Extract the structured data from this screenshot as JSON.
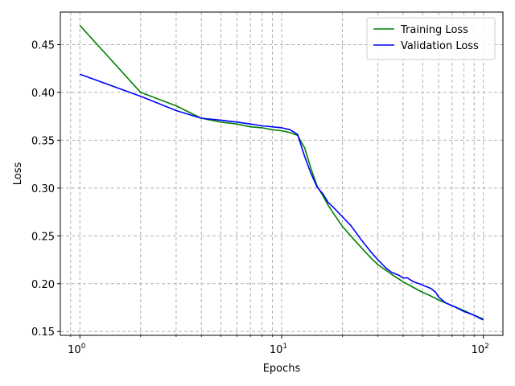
{
  "chart_data": {
    "type": "line",
    "title": "",
    "xlabel": "Epochs",
    "ylabel": "Loss",
    "xscale": "log",
    "xlim": [
      0.8,
      125
    ],
    "ylim": [
      0.146,
      0.484
    ],
    "grid": true,
    "grid_style": "dashed",
    "legend_position": "top-right",
    "xticks": [
      {
        "value": 1,
        "base": "10",
        "exp": "0"
      },
      {
        "value": 10,
        "base": "10",
        "exp": "1"
      },
      {
        "value": 100,
        "base": "10",
        "exp": "2"
      }
    ],
    "yticks": [
      {
        "value": 0.15,
        "label": "0.15"
      },
      {
        "value": 0.2,
        "label": "0.20"
      },
      {
        "value": 0.25,
        "label": "0.25"
      },
      {
        "value": 0.3,
        "label": "0.30"
      },
      {
        "value": 0.35,
        "label": "0.35"
      },
      {
        "value": 0.4,
        "label": "0.40"
      },
      {
        "value": 0.45,
        "label": "0.45"
      }
    ],
    "series": [
      {
        "name": "Training Loss",
        "color": "#008000",
        "x": [
          1,
          2,
          3,
          4,
          5,
          6,
          7,
          8,
          9,
          10,
          11,
          12,
          13,
          14,
          15,
          16,
          17,
          18,
          20,
          22,
          25,
          28,
          30,
          35,
          40,
          45,
          50,
          55,
          60,
          70,
          80,
          90,
          100
        ],
        "y": [
          0.47,
          0.4,
          0.386,
          0.373,
          0.369,
          0.367,
          0.364,
          0.363,
          0.361,
          0.36,
          0.358,
          0.355,
          0.342,
          0.32,
          0.302,
          0.292,
          0.282,
          0.274,
          0.26,
          0.25,
          0.237,
          0.226,
          0.22,
          0.21,
          0.202,
          0.196,
          0.191,
          0.187,
          0.183,
          0.177,
          0.172,
          0.167,
          0.163
        ]
      },
      {
        "name": "Validation Loss",
        "color": "#0000ff",
        "x": [
          1,
          2,
          3,
          4,
          5,
          6,
          7,
          8,
          9,
          10,
          11,
          12,
          13,
          14,
          15,
          16,
          17,
          18,
          20,
          22,
          25,
          28,
          30,
          33,
          35,
          38,
          40,
          42,
          45,
          48,
          52,
          55,
          58,
          60,
          65,
          70,
          75,
          80,
          90,
          100
        ],
        "y": [
          0.419,
          0.396,
          0.381,
          0.373,
          0.371,
          0.369,
          0.367,
          0.365,
          0.364,
          0.363,
          0.361,
          0.356,
          0.333,
          0.315,
          0.301,
          0.294,
          0.285,
          0.28,
          0.27,
          0.261,
          0.245,
          0.232,
          0.225,
          0.216,
          0.212,
          0.209,
          0.206,
          0.206,
          0.202,
          0.2,
          0.197,
          0.195,
          0.191,
          0.186,
          0.18,
          0.177,
          0.174,
          0.171,
          0.167,
          0.162
        ]
      }
    ]
  }
}
